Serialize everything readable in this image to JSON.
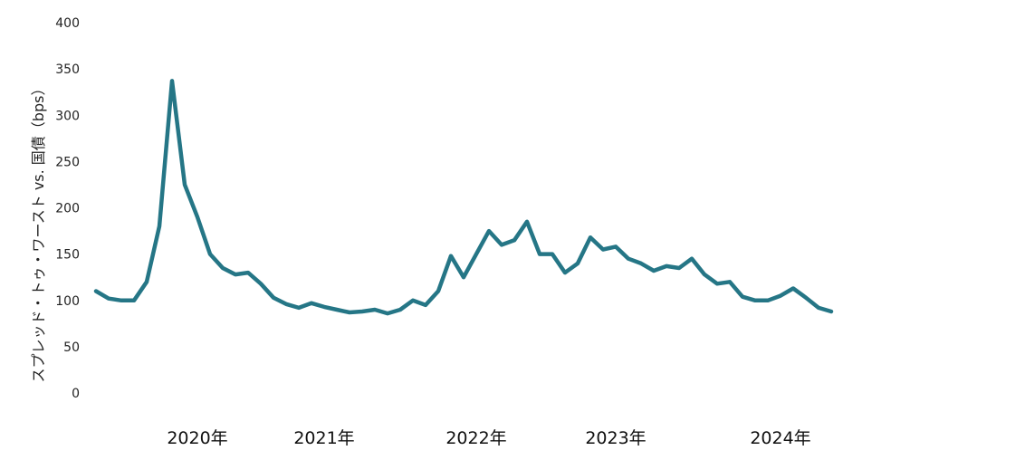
{
  "chart_data": {
    "type": "line",
    "title": "",
    "xlabel": "",
    "ylabel": "スプレッド・トゥ・ワースト vs. 国債（bps）",
    "ylim": [
      0,
      400
    ],
    "yticks": [
      "0",
      "50",
      "100",
      "150",
      "200",
      "250",
      "300",
      "350",
      "400"
    ],
    "xticks": [
      {
        "label": "2020年",
        "x": "2020-03"
      },
      {
        "label": "2021年",
        "x": "2021-01"
      },
      {
        "label": "2022年",
        "x": "2022-01"
      },
      {
        "label": "2023年",
        "x": "2022-12"
      },
      {
        "label": "2024年",
        "x": "2024-01"
      }
    ],
    "xlim": [
      "2019-07",
      "2024-05"
    ],
    "grid": false,
    "colors": {
      "line": "#257686"
    },
    "series": [
      {
        "x": [
          "2019-07",
          "2019-08",
          "2019-09",
          "2019-10",
          "2019-11",
          "2019-12",
          "2020-01",
          "2020-02",
          "2020-03",
          "2020-04",
          "2020-05",
          "2020-06",
          "2020-07",
          "2020-08",
          "2020-09",
          "2020-10",
          "2020-11",
          "2020-12",
          "2021-01",
          "2021-02",
          "2021-03",
          "2021-04",
          "2021-05",
          "2021-06",
          "2021-07",
          "2021-08",
          "2021-09",
          "2021-10",
          "2021-11",
          "2021-12",
          "2022-01",
          "2022-02",
          "2022-03",
          "2022-04",
          "2022-05",
          "2022-06",
          "2022-07",
          "2022-08",
          "2022-09",
          "2022-10",
          "2022-11",
          "2022-12",
          "2023-01",
          "2023-02",
          "2023-03",
          "2023-04",
          "2023-05",
          "2023-06",
          "2023-07",
          "2023-08",
          "2023-09",
          "2023-10",
          "2023-11",
          "2023-12",
          "2024-01",
          "2024-02",
          "2024-03",
          "2024-04",
          "2024-05"
        ],
        "y": [
          110,
          102,
          100,
          100,
          120,
          180,
          337,
          225,
          190,
          150,
          135,
          128,
          130,
          118,
          103,
          96,
          92,
          97,
          93,
          90,
          87,
          88,
          90,
          86,
          90,
          100,
          95,
          110,
          148,
          125,
          150,
          175,
          160,
          165,
          185,
          150,
          150,
          130,
          140,
          168,
          155,
          158,
          145,
          140,
          132,
          137,
          135,
          145,
          128,
          118,
          120,
          104,
          100,
          100,
          105,
          113,
          103,
          92,
          88
        ]
      }
    ]
  }
}
